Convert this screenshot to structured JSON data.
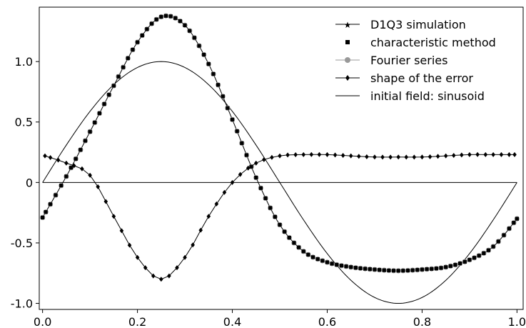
{
  "chart_data": {
    "type": "line",
    "xlim": [
      -0.007,
      1.013
    ],
    "ylim": [
      -1.05,
      1.45
    ],
    "x_ticks": [
      0.0,
      0.2,
      0.4,
      0.6,
      0.8,
      1.0
    ],
    "x_tick_labels": [
      "0.0",
      "0.2",
      "0.4",
      "0.6",
      "0.8",
      "1.0"
    ],
    "y_ticks": [
      1.0,
      0.5,
      0,
      -0.5,
      -1.0
    ],
    "y_tick_labels": [
      "1.0",
      "0.5",
      "0",
      "-0.5",
      "-1.0"
    ],
    "grid": false,
    "legend_position": "top-right",
    "legend": [
      {
        "label": "D1Q3 simulation",
        "marker": "star",
        "line": true,
        "color": "#000000"
      },
      {
        "label": "characteristic method",
        "marker": "square",
        "line": false,
        "color": "#000000"
      },
      {
        "label": "Fourier series",
        "marker": "circle",
        "line": true,
        "color": "#999999"
      },
      {
        "label": "shape of the error",
        "marker": "diamond",
        "line": true,
        "color": "#000000"
      },
      {
        "label": "initial field: sinusoid",
        "marker": "none",
        "line": true,
        "color": "#000000"
      }
    ],
    "series": [
      {
        "name": "initial field: sinusoid",
        "x": [
          0,
          0.05,
          0.1,
          0.15,
          0.2,
          0.25,
          0.3,
          0.35,
          0.4,
          0.45,
          0.5,
          0.55,
          0.6,
          0.65,
          0.7,
          0.75,
          0.8,
          0.85,
          0.9,
          0.95,
          1.0
        ],
        "y": [
          0,
          0.309,
          0.588,
          0.809,
          0.951,
          1.0,
          0.951,
          0.809,
          0.588,
          0.309,
          0,
          -0.309,
          -0.588,
          -0.809,
          -0.951,
          -1.0,
          -0.951,
          -0.809,
          -0.588,
          -0.309,
          0
        ]
      },
      {
        "name": "initial field: sinusoid",
        "x": [
          0,
          1.0
        ],
        "y": [
          0,
          0
        ]
      },
      {
        "name": "D1Q3 simulation",
        "x": [
          0,
          0.05,
          0.1,
          0.15,
          0.2,
          0.25,
          0.3,
          0.35,
          0.4,
          0.45,
          0.5,
          0.55,
          0.6,
          0.65,
          0.7,
          0.75,
          0.8,
          0.85,
          0.9,
          0.95,
          1.0
        ],
        "y": [
          -0.29,
          0.05,
          0.42,
          0.8,
          1.16,
          1.37,
          1.3,
          0.98,
          0.52,
          0.04,
          -0.35,
          -0.57,
          -0.66,
          -0.7,
          -0.72,
          -0.73,
          -0.72,
          -0.7,
          -0.64,
          -0.53,
          -0.3
        ]
      },
      {
        "name": "shape of the error",
        "x": [
          0.005,
          0.05,
          0.1,
          0.15,
          0.2,
          0.25,
          0.3,
          0.35,
          0.4,
          0.45,
          0.5,
          0.55,
          0.6,
          0.65,
          0.7,
          0.75,
          0.8,
          0.85,
          0.9,
          0.95,
          0.995
        ],
        "y": [
          0.22,
          0.16,
          0.06,
          -0.28,
          -0.62,
          -0.8,
          -0.62,
          -0.28,
          0.0,
          0.16,
          0.22,
          0.23,
          0.23,
          0.22,
          0.21,
          0.21,
          0.21,
          0.22,
          0.23,
          0.23,
          0.23
        ]
      }
    ]
  }
}
